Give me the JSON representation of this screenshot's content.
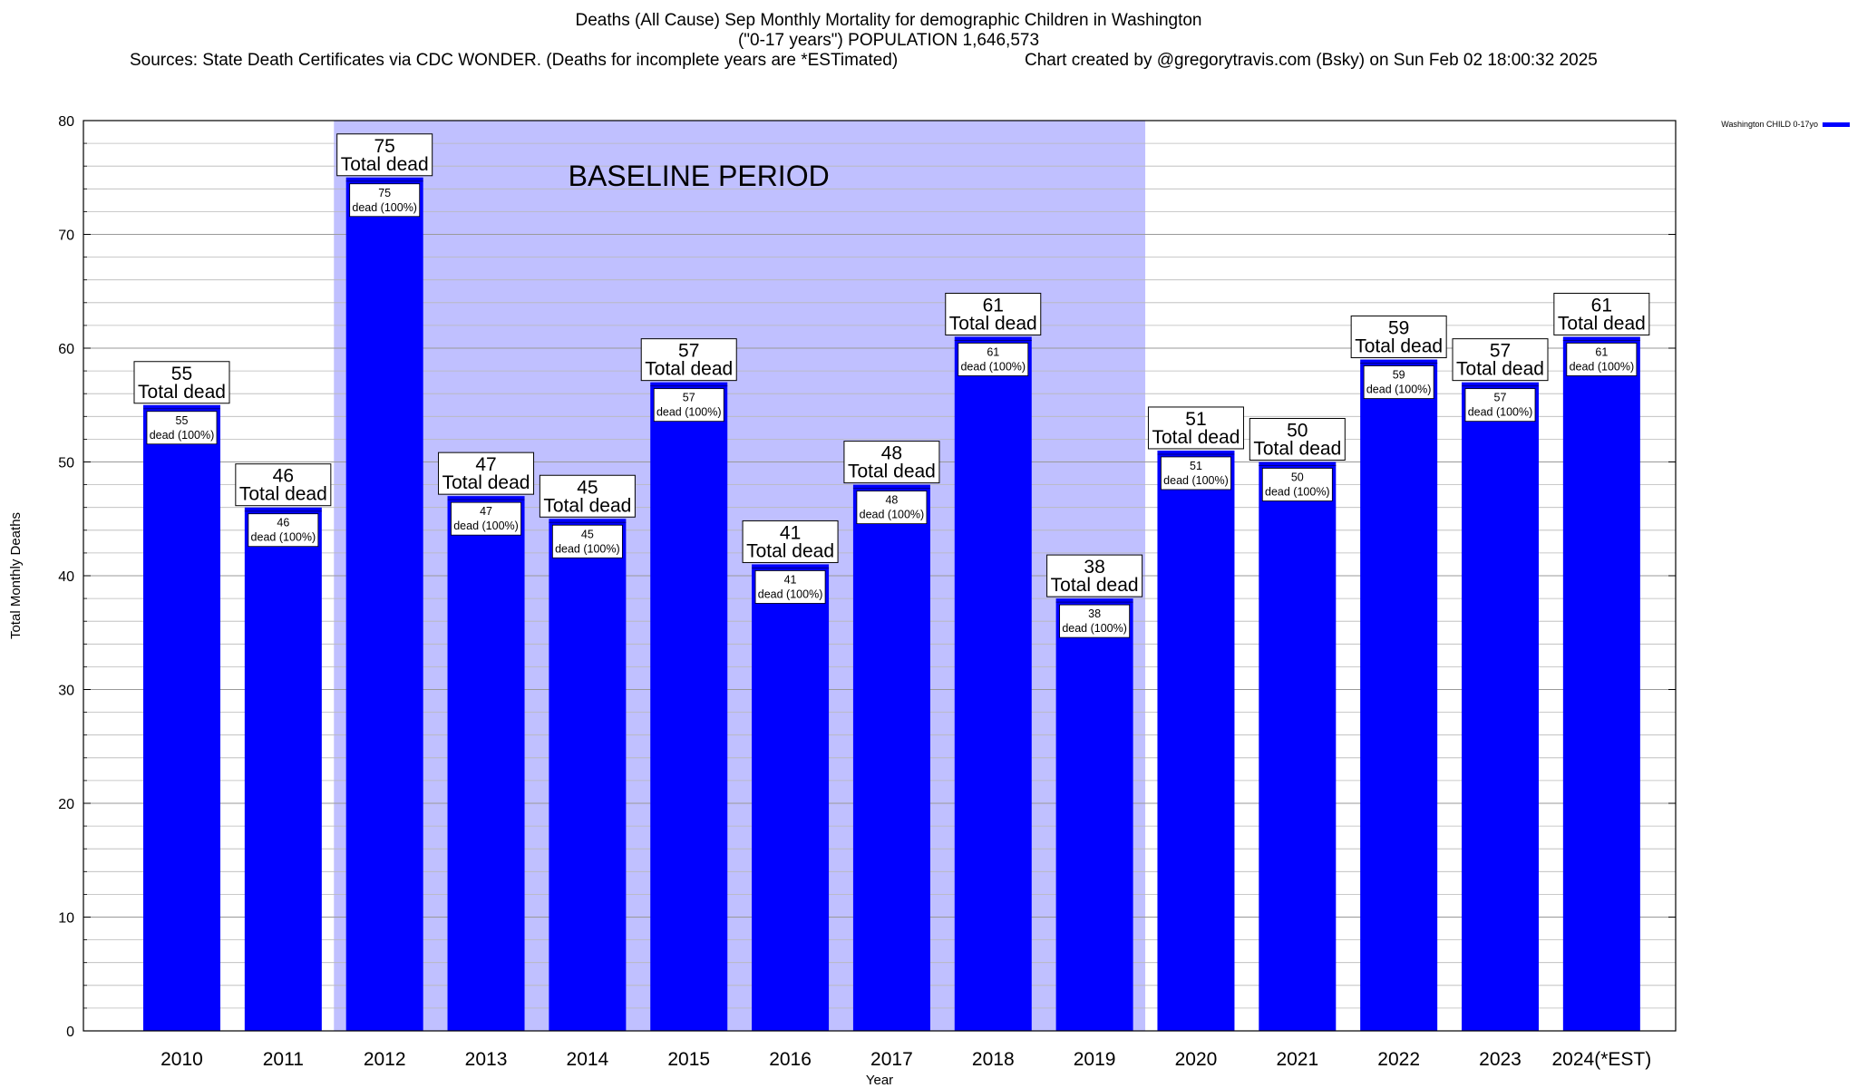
{
  "chart_data": {
    "type": "bar",
    "title": "Deaths (All Cause) Sep Monthly Mortality for demographic Children in Washington",
    "subtitle": "(\"0-17 years\") POPULATION 1,646,573",
    "sources": "Sources: State Death Certificates via CDC WONDER. (Deaths for incomplete years are *ESTimated)",
    "credit": "Chart created by @gregorytravis.com (Bsky) on Sun Feb 02 18:00:32 2025",
    "xlabel": "Year",
    "ylabel": "Total Monthly Deaths",
    "ylim": [
      0,
      80
    ],
    "yticks": [
      0,
      10,
      20,
      30,
      40,
      50,
      60,
      70,
      80
    ],
    "categories": [
      "2010",
      "2011",
      "2012",
      "2013",
      "2014",
      "2015",
      "2016",
      "2017",
      "2018",
      "2019",
      "2020",
      "2021",
      "2022",
      "2023",
      "2024(*EST)"
    ],
    "series": [
      {
        "name": "Washington CHILD 0-17yo",
        "color": "#0000ff",
        "values": [
          55,
          46,
          75,
          47,
          45,
          57,
          41,
          48,
          61,
          38,
          51,
          50,
          59,
          57,
          61
        ]
      }
    ],
    "top_label_text": "Total dead",
    "inner_label_text": "dead (100%)",
    "baseline": {
      "label": "BASELINE PERIOD",
      "from_category": "2012",
      "to_category": "2019",
      "color": "#c0c0ff"
    },
    "legend": {
      "position": "top-right",
      "entries": [
        "Washington CHILD 0-17yo"
      ]
    },
    "grid": true
  }
}
